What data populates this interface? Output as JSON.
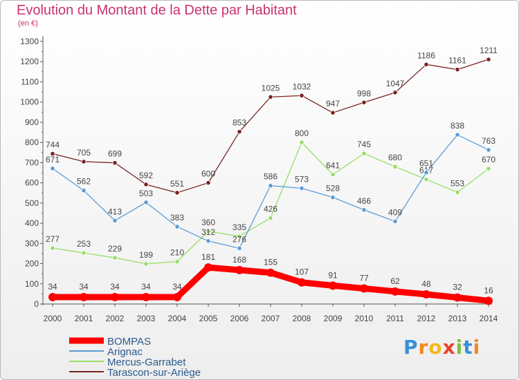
{
  "header": {
    "title": "Evolution du Montant de la Dette par Habitant",
    "subtitle": "(en €)"
  },
  "logo": {
    "text": "Proxiti",
    "letters": [
      "P",
      "r",
      "o",
      "x",
      "i",
      "t",
      "i"
    ]
  },
  "chart_data": {
    "type": "line",
    "title": "Evolution du Montant de la Dette par Habitant",
    "ylabel": "(en €)",
    "xlabel": "",
    "ylim": [
      0,
      1300
    ],
    "yticks": [
      0,
      100,
      200,
      300,
      400,
      500,
      600,
      700,
      800,
      900,
      1000,
      1100,
      1200,
      1300
    ],
    "x": [
      "2000",
      "2001",
      "2002",
      "2003",
      "2004",
      "2005",
      "2006",
      "2007",
      "2008",
      "2009",
      "2010",
      "2011",
      "2012",
      "2013",
      "2014"
    ],
    "grid": false,
    "legend_position": "bottom-left",
    "series": [
      {
        "name": "BOMPAS",
        "color": "#ff0000",
        "values": [
          34,
          34,
          34,
          34,
          34,
          181,
          168,
          155,
          107,
          91,
          77,
          62,
          48,
          32,
          16
        ]
      },
      {
        "name": "Arignac",
        "color": "#5b9bd5",
        "values": [
          671,
          562,
          413,
          503,
          383,
          312,
          276,
          586,
          573,
          528,
          466,
          409,
          651,
          838,
          763
        ]
      },
      {
        "name": "Mercus-Garrabet",
        "color": "#99dd66",
        "values": [
          277,
          253,
          229,
          199,
          210,
          360,
          335,
          426,
          800,
          641,
          745,
          680,
          617,
          553,
          670
        ]
      },
      {
        "name": "Tarascon-sur-Ariège",
        "color": "#7a2222",
        "values": [
          744,
          705,
          699,
          592,
          551,
          600,
          853,
          1025,
          1032,
          947,
          998,
          1047,
          1186,
          1161,
          1211
        ]
      }
    ]
  }
}
